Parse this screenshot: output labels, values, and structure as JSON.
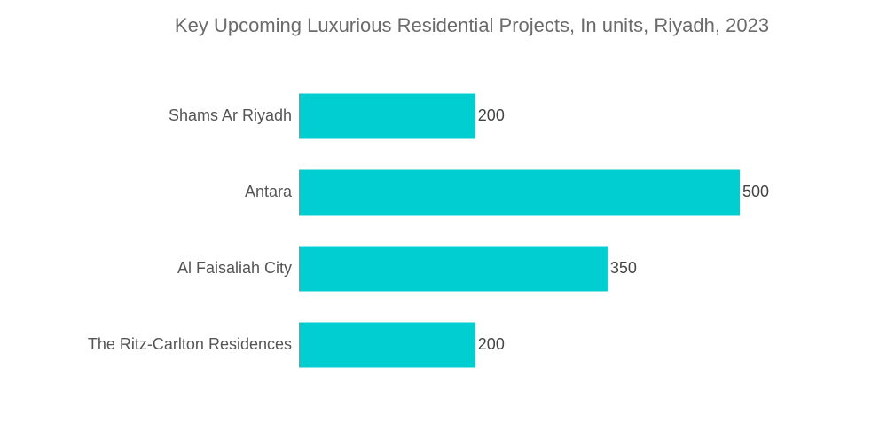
{
  "chart_data": {
    "type": "bar",
    "orientation": "horizontal",
    "title": "Key Upcoming Luxurious Residential Projects, In units, Riyadh, 2023",
    "xlabel": "",
    "ylabel": "",
    "categories": [
      "Shams Ar Riyadh",
      "Antara",
      "Al Faisaliah City",
      "The Ritz-Carlton Residences"
    ],
    "values": [
      200,
      500,
      350,
      200
    ],
    "xlim": [
      0,
      500
    ],
    "grid": false,
    "legend": "none",
    "data_labels": true,
    "bar_color": "#00CED1"
  }
}
